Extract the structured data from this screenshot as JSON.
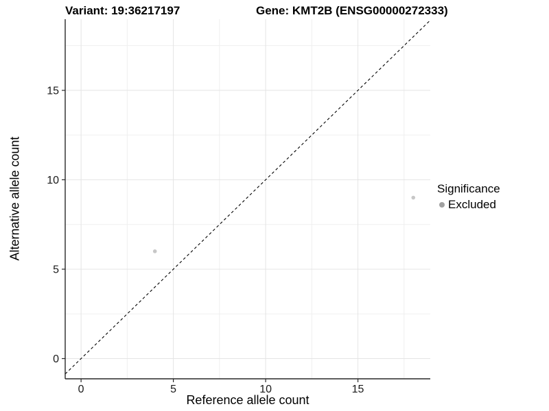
{
  "header": {
    "title_left": "Variant: 19:36217197",
    "title_right": "Gene: KMT2B (ENSG00000272333)"
  },
  "chart_data": {
    "type": "scatter",
    "title_left": "Variant: 19:36217197",
    "title_right": "Gene: KMT2B (ENSG00000272333)",
    "xlabel": "Reference allele count",
    "ylabel": "Alternative allele count",
    "xlim": [
      -0.86,
      18.92
    ],
    "ylim": [
      -1.13,
      18.98
    ],
    "x_ticks": [
      0,
      5,
      10,
      15
    ],
    "y_ticks": [
      0,
      5,
      10,
      15
    ],
    "x_minor_ticks": [
      2.5,
      7.5,
      12.5,
      17.5
    ],
    "y_minor_ticks": [
      2.5,
      7.5,
      12.5,
      17.5
    ],
    "grid": true,
    "identity_line": {
      "style": "dashed",
      "color": "#000000"
    },
    "series": [
      {
        "name": "Excluded",
        "color": "#c7c7c7",
        "points": [
          {
            "x": 4,
            "y": 6
          },
          {
            "x": 18,
            "y": 9
          }
        ]
      }
    ],
    "legend": {
      "title": "Significance",
      "position": "right",
      "entries": [
        {
          "label": "Excluded",
          "color": "#a0a0a0"
        }
      ]
    },
    "colors": {
      "grid_major": "#e4e4e4",
      "grid_minor": "#efefef",
      "axis_line": "#262626",
      "tick_text": "#1a1a1a",
      "panel_background": "#ffffff"
    }
  }
}
